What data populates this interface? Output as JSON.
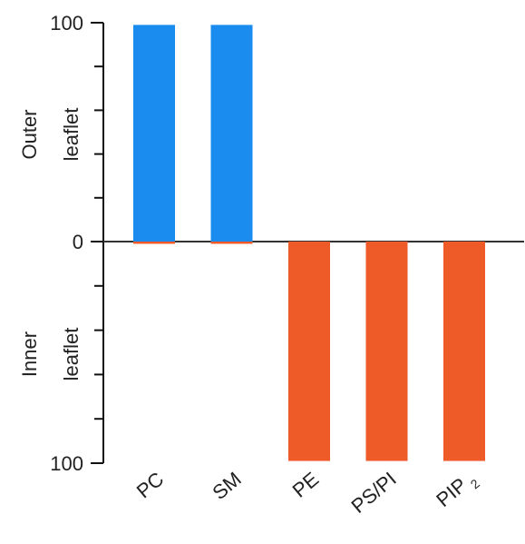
{
  "chart_data": {
    "type": "bar",
    "categories": [
      "PC",
      "SM",
      "PE",
      "PS/PI",
      "PIP"
    ],
    "category_subscripts": [
      "",
      "",
      "",
      "",
      "2"
    ],
    "series": [
      {
        "values": [
          99,
          99,
          0,
          0,
          0
        ],
        "color": "#1a8cf0"
      },
      {
        "values": [
          -1,
          -1,
          -99,
          -99,
          -99
        ],
        "color": "#ee5a28"
      }
    ],
    "y_ticks": [
      {
        "value": 100,
        "label": "100"
      },
      {
        "value": 0,
        "label": "0"
      },
      {
        "value": -100,
        "label": "100"
      }
    ],
    "ylim": [
      -100,
      100
    ],
    "region_labels": {
      "outer": [
        "Outer",
        "leaflet"
      ],
      "inner": [
        "Inner",
        "leaflet"
      ]
    },
    "grid": false
  }
}
